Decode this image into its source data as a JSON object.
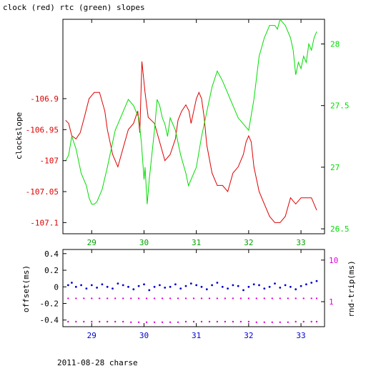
{
  "figure_title": "clock (red) rtc (green) slopes",
  "footer": "2011-08-28 charse",
  "colors": {
    "clock": "#dd0000",
    "rtc": "#00dd00",
    "offset": "#0000cc",
    "rndtrip": "#dd00dd",
    "axis": "#000000"
  },
  "chart_data": [
    {
      "type": "line",
      "title": "clock (red) rtc (green) slopes",
      "ylabel": "clockslope",
      "y2label": "",
      "xlim": [
        28.45,
        33.45
      ],
      "ylim": [
        -107.118,
        -106.772
      ],
      "y2lim": [
        26.46,
        28.2
      ],
      "x_ticks": [
        29,
        30,
        31,
        32,
        33
      ],
      "y_ticks": [
        -106.9,
        -106.95,
        -107,
        -107.05,
        -107.1
      ],
      "y2_ticks": [
        26.5,
        27,
        27.5,
        28
      ],
      "series": [
        {
          "name": "clock",
          "axis": "left",
          "x": [
            28.5,
            28.56,
            28.62,
            28.7,
            28.78,
            28.86,
            28.95,
            29.05,
            29.15,
            29.25,
            29.3,
            29.35,
            29.4,
            29.45,
            29.5,
            29.6,
            29.7,
            29.8,
            29.88,
            29.92,
            29.96,
            30.02,
            30.08,
            30.14,
            30.2,
            30.3,
            30.4,
            30.5,
            30.6,
            30.65,
            30.72,
            30.8,
            30.86,
            30.9,
            30.95,
            31.0,
            31.05,
            31.1,
            31.15,
            31.2,
            31.3,
            31.4,
            31.5,
            31.6,
            31.7,
            31.8,
            31.9,
            31.95,
            32.0,
            32.05,
            32.1,
            32.2,
            32.3,
            32.4,
            32.5,
            32.6,
            32.7,
            32.8,
            32.9,
            33.0,
            33.1,
            33.2,
            33.3
          ],
          "y": [
            -106.935,
            -106.94,
            -106.96,
            -106.965,
            -106.955,
            -106.93,
            -106.9,
            -106.89,
            -106.89,
            -106.92,
            -106.95,
            -106.97,
            -106.99,
            -107.0,
            -107.01,
            -106.98,
            -106.95,
            -106.94,
            -106.92,
            -106.955,
            -106.84,
            -106.89,
            -106.93,
            -106.935,
            -106.94,
            -106.97,
            -107.0,
            -106.99,
            -106.965,
            -106.935,
            -106.92,
            -106.91,
            -106.92,
            -106.94,
            -106.92,
            -106.9,
            -106.89,
            -106.9,
            -106.93,
            -106.975,
            -107.02,
            -107.04,
            -107.04,
            -107.05,
            -107.02,
            -107.01,
            -106.99,
            -106.97,
            -106.96,
            -106.97,
            -107.01,
            -107.05,
            -107.07,
            -107.09,
            -107.1,
            -107.1,
            -107.09,
            -107.06,
            -107.07,
            -107.06,
            -107.06,
            -107.06,
            -107.08
          ]
        },
        {
          "name": "rtc",
          "axis": "right",
          "x": [
            28.5,
            28.56,
            28.62,
            28.7,
            28.8,
            28.9,
            28.95,
            29.0,
            29.05,
            29.1,
            29.2,
            29.3,
            29.4,
            29.45,
            29.5,
            29.6,
            29.7,
            29.8,
            29.9,
            29.95,
            30.0,
            30.02,
            30.06,
            30.1,
            30.15,
            30.2,
            30.25,
            30.3,
            30.35,
            30.4,
            30.45,
            30.5,
            30.6,
            30.65,
            30.7,
            30.8,
            30.85,
            30.9,
            30.95,
            31.0,
            31.1,
            31.2,
            31.3,
            31.4,
            31.5,
            31.6,
            31.7,
            31.8,
            31.9,
            32.0,
            32.1,
            32.2,
            32.3,
            32.4,
            32.5,
            32.55,
            32.6,
            32.7,
            32.8,
            32.85,
            32.9,
            32.95,
            33.0,
            33.05,
            33.1,
            33.15,
            33.2,
            33.25,
            33.3
          ],
          "y": [
            27.05,
            27.1,
            27.25,
            27.15,
            26.95,
            26.85,
            26.75,
            26.7,
            26.7,
            26.72,
            26.82,
            27.0,
            27.2,
            27.3,
            27.35,
            27.45,
            27.55,
            27.5,
            27.4,
            27.2,
            26.9,
            27.0,
            26.7,
            26.9,
            27.1,
            27.3,
            27.55,
            27.5,
            27.4,
            27.35,
            27.25,
            27.4,
            27.3,
            27.2,
            27.1,
            26.95,
            26.85,
            26.9,
            26.95,
            27.0,
            27.25,
            27.45,
            27.65,
            27.78,
            27.7,
            27.6,
            27.5,
            27.4,
            27.35,
            27.3,
            27.55,
            27.9,
            28.05,
            28.15,
            28.15,
            28.12,
            28.2,
            28.15,
            28.05,
            27.95,
            27.75,
            27.85,
            27.8,
            27.9,
            27.85,
            28.0,
            27.95,
            28.05,
            28.1
          ]
        }
      ]
    },
    {
      "type": "scatter",
      "ylabel": "offset(ms)",
      "y2label": "rnd-trip(ms)",
      "xlim": [
        28.45,
        33.45
      ],
      "ylim": [
        -0.48,
        0.45
      ],
      "y2lim": [
        0.25,
        18
      ],
      "y2_scale": "log",
      "x_ticks": [
        29,
        30,
        31,
        32,
        33
      ],
      "y_ticks": [
        0.4,
        0.2,
        0,
        -0.2,
        -0.4
      ],
      "y2_ticks": [
        1,
        10
      ],
      "series": [
        {
          "name": "offset",
          "axis": "left",
          "x": [
            28.55,
            28.62,
            28.7,
            28.8,
            28.9,
            29.0,
            29.1,
            29.2,
            29.3,
            29.4,
            29.5,
            29.6,
            29.7,
            29.8,
            29.9,
            30.0,
            30.1,
            30.2,
            30.3,
            30.4,
            30.5,
            30.6,
            30.7,
            30.8,
            30.9,
            31.0,
            31.1,
            31.2,
            31.3,
            31.4,
            31.5,
            31.6,
            31.7,
            31.8,
            31.9,
            32.0,
            32.1,
            32.2,
            32.3,
            32.4,
            32.5,
            32.6,
            32.7,
            32.8,
            32.9,
            33.0,
            33.1,
            33.2,
            33.3
          ],
          "y": [
            0.02,
            0.05,
            0.0,
            0.02,
            -0.02,
            0.02,
            -0.01,
            0.03,
            0.0,
            -0.02,
            0.04,
            0.02,
            0.0,
            -0.03,
            0.01,
            0.03,
            -0.04,
            0.0,
            0.02,
            -0.01,
            0.0,
            0.03,
            -0.02,
            0.01,
            0.04,
            0.02,
            0.0,
            -0.03,
            0.02,
            0.05,
            0.0,
            -0.02,
            0.02,
            0.01,
            -0.04,
            0.0,
            0.03,
            0.02,
            -0.02,
            0.0,
            0.04,
            -0.01,
            0.02,
            0.0,
            -0.03,
            0.01,
            0.03,
            0.05,
            0.07
          ]
        },
        {
          "name": "rnd-trip",
          "axis": "right",
          "x": [
            28.55,
            28.7,
            28.85,
            29.0,
            29.15,
            29.3,
            29.45,
            29.6,
            29.75,
            29.9,
            30.05,
            30.2,
            30.35,
            30.5,
            30.65,
            30.8,
            30.95,
            31.1,
            31.25,
            31.4,
            31.55,
            31.7,
            31.85,
            32.0,
            32.15,
            32.3,
            32.45,
            32.6,
            32.75,
            32.9,
            33.05,
            33.2,
            33.3
          ],
          "y": [
            1.2,
            1.2,
            1.2,
            1.2,
            1.2,
            1.2,
            1.2,
            1.2,
            1.2,
            1.2,
            1.2,
            1.2,
            1.2,
            1.2,
            1.2,
            1.2,
            1.2,
            1.2,
            1.2,
            1.2,
            1.2,
            1.2,
            1.2,
            1.2,
            1.2,
            1.2,
            1.2,
            1.2,
            1.2,
            1.2,
            1.2,
            1.2,
            1.2
          ]
        },
        {
          "name": "rnd-trip-lower",
          "axis": "right",
          "x": [
            28.55,
            28.7,
            28.85,
            29.0,
            29.15,
            29.3,
            29.45,
            29.6,
            29.75,
            29.9,
            30.05,
            30.2,
            30.35,
            30.5,
            30.65,
            30.8,
            30.95,
            31.1,
            31.25,
            31.4,
            31.55,
            31.7,
            31.85,
            32.0,
            32.15,
            32.3,
            32.45,
            32.6,
            32.75,
            32.9,
            33.05,
            33.2,
            33.3
          ],
          "y": [
            0.33,
            0.33,
            0.33,
            0.33,
            0.33,
            0.33,
            0.33,
            0.33,
            0.32,
            0.32,
            0.32,
            0.32,
            0.32,
            0.32,
            0.32,
            0.33,
            0.33,
            0.33,
            0.33,
            0.33,
            0.33,
            0.33,
            0.33,
            0.33,
            0.32,
            0.32,
            0.32,
            0.32,
            0.32,
            0.33,
            0.33,
            0.33,
            0.33
          ]
        }
      ]
    }
  ]
}
